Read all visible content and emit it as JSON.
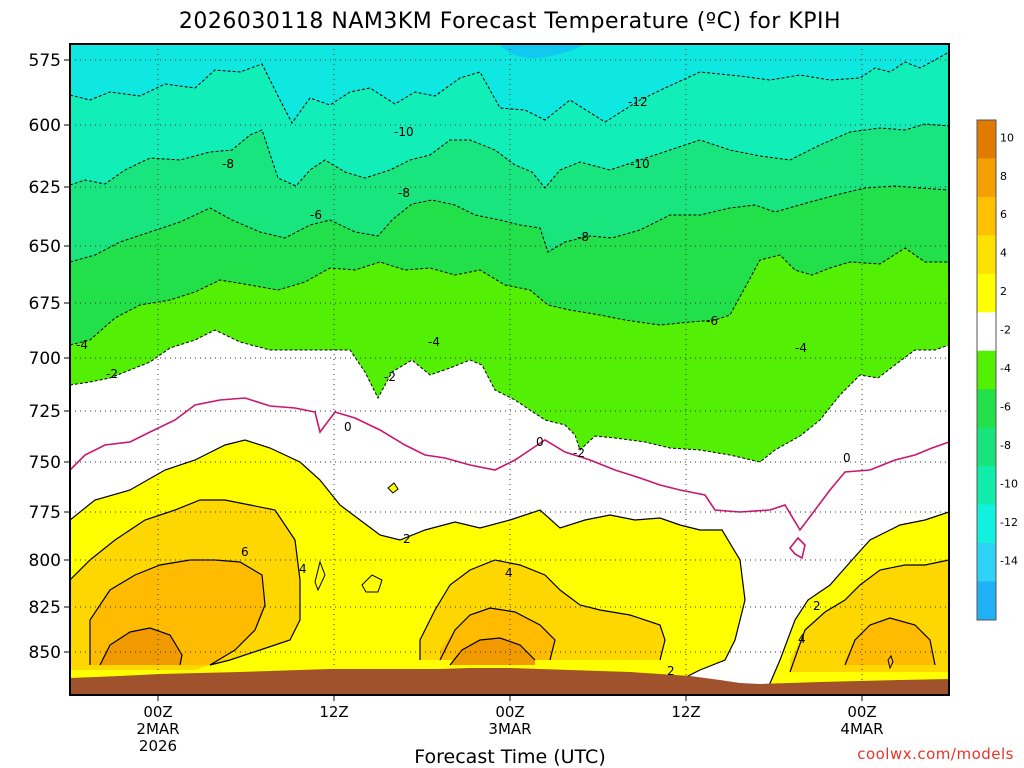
{
  "title": "2026030118 NAM3KM Forecast Temperature (ºC) for KPIH",
  "credit": "coolwx.com/models",
  "chart_data": {
    "type": "heatmap",
    "title": "2026030118 NAM3KM Forecast Temperature (ºC) for KPIH",
    "xlabel": "Forecast Time (UTC)",
    "ylabel": "",
    "x_ticks": [
      {
        "label": [
          "00Z",
          "2MAR",
          "2026"
        ]
      },
      {
        "label": [
          "12Z"
        ]
      },
      {
        "label": [
          "00Z",
          "3MAR"
        ]
      },
      {
        "label": [
          "12Z"
        ]
      },
      {
        "label": [
          "00Z",
          "4MAR"
        ]
      }
    ],
    "y_ticks": [
      "575",
      "600",
      "625",
      "650",
      "675",
      "700",
      "725",
      "750",
      "775",
      "800",
      "825",
      "850"
    ],
    "ylim": [
      870,
      568
    ],
    "grid": "dotted",
    "colorbar": {
      "labels": [
        "10",
        "8",
        "6",
        "4",
        "2",
        "-2",
        "-4",
        "-6",
        "-8",
        "-10",
        "-12",
        "-14"
      ],
      "colors": [
        "#e07b00",
        "#f4a000",
        "#ffc000",
        "#ffe100",
        "#ffff00",
        "#ffffff",
        "#53f000",
        "#22e04a",
        "#19e47c",
        "#12ecab",
        "#12f0e0",
        "#2ed2f4",
        "#1fb0f5"
      ]
    },
    "contour_labels": [
      "-12",
      "-10",
      "-10",
      "-8",
      "-8",
      "-8",
      "-6",
      "-6",
      "-4",
      "-4",
      "-4",
      "-2",
      "-2",
      "-2",
      "0",
      "0",
      "0",
      "2",
      "2",
      "2",
      "4",
      "4",
      "4",
      "6"
    ]
  }
}
